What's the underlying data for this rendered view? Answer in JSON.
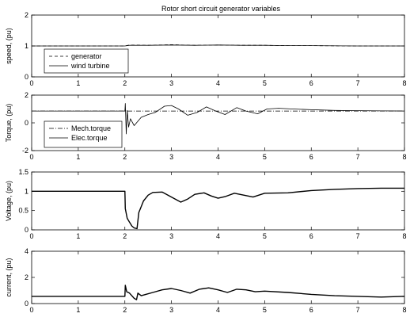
{
  "chart_data": [
    {
      "type": "line",
      "title": "Rotor short circuit generator variables",
      "xlabel": "",
      "ylabel": "speed, (pu)",
      "xlim": [
        0,
        8
      ],
      "ylim": [
        0,
        2
      ],
      "xticks": [
        0,
        1,
        2,
        3,
        4,
        5,
        6,
        7,
        8
      ],
      "yticks": [
        0,
        1,
        2
      ],
      "legend": "lower-left",
      "grid": false,
      "series": [
        {
          "name": "generator",
          "style": "dashed",
          "x": [
            0,
            2,
            2.1,
            2.5,
            3,
            3.5,
            4,
            4.5,
            5,
            5.5,
            6,
            7,
            8
          ],
          "y": [
            1.0,
            1.0,
            1.03,
            1.02,
            1.04,
            1.02,
            1.03,
            1.02,
            1.02,
            1.01,
            1.01,
            1.0,
            1.0
          ]
        },
        {
          "name": "wind turbine",
          "style": "solid",
          "x": [
            0,
            2,
            2.1,
            2.5,
            3,
            3.5,
            4,
            4.5,
            5,
            5.5,
            6,
            7,
            8
          ],
          "y": [
            1.0,
            1.0,
            1.02,
            1.02,
            1.03,
            1.02,
            1.03,
            1.02,
            1.02,
            1.01,
            1.01,
            1.0,
            1.0
          ]
        }
      ]
    },
    {
      "type": "line",
      "xlabel": "",
      "ylabel": "Torque, (pu)",
      "xlim": [
        0,
        8
      ],
      "ylim": [
        -2,
        2
      ],
      "xticks": [
        0,
        1,
        2,
        3,
        4,
        5,
        6,
        7,
        8
      ],
      "yticks": [
        -2,
        0,
        2
      ],
      "legend": "lower-left",
      "grid": false,
      "series": [
        {
          "name": "Mech.torque",
          "style": "dashdot",
          "x": [
            0,
            8
          ],
          "y": [
            0.85,
            0.85
          ]
        },
        {
          "name": "Elec.torque",
          "style": "solid",
          "x": [
            0,
            2.0,
            2.01,
            2.03,
            2.05,
            2.08,
            2.12,
            2.2,
            2.35,
            2.5,
            2.65,
            2.85,
            3.0,
            3.15,
            3.35,
            3.55,
            3.75,
            3.95,
            4.15,
            4.4,
            4.6,
            4.85,
            5.05,
            5.3,
            5.6,
            6.0,
            6.5,
            7.0,
            7.5,
            8.0
          ],
          "y": [
            0.85,
            0.85,
            1.4,
            -0.8,
            0.9,
            -0.3,
            0.3,
            -0.2,
            0.4,
            0.6,
            0.75,
            1.2,
            1.25,
            1.0,
            0.55,
            0.75,
            1.15,
            0.85,
            0.6,
            1.1,
            0.85,
            0.65,
            1.0,
            1.05,
            1.0,
            0.95,
            0.9,
            0.88,
            0.86,
            0.85
          ]
        }
      ]
    },
    {
      "type": "line",
      "xlabel": "",
      "ylabel": "Voltage, (pu)",
      "xlim": [
        0,
        8
      ],
      "ylim": [
        0,
        1.5
      ],
      "xticks": [
        0,
        1,
        2,
        3,
        4,
        5,
        6,
        7,
        8
      ],
      "yticks": [
        0,
        0.5,
        1,
        1.5
      ],
      "grid": false,
      "series": [
        {
          "style": "solid",
          "x": [
            0,
            2.0,
            2.01,
            2.05,
            2.1,
            2.15,
            2.2,
            2.26,
            2.3,
            2.4,
            2.5,
            2.6,
            2.8,
            3.0,
            3.2,
            3.35,
            3.5,
            3.7,
            3.85,
            4.0,
            4.15,
            4.35,
            4.55,
            4.75,
            5.0,
            5.5,
            6.0,
            6.5,
            7.0,
            7.5,
            8.0
          ],
          "y": [
            1.0,
            1.0,
            0.55,
            0.3,
            0.2,
            0.1,
            0.05,
            0.03,
            0.45,
            0.75,
            0.9,
            0.97,
            0.98,
            0.85,
            0.72,
            0.8,
            0.92,
            0.96,
            0.88,
            0.82,
            0.86,
            0.95,
            0.9,
            0.85,
            0.95,
            0.96,
            1.02,
            1.05,
            1.07,
            1.08,
            1.08
          ]
        }
      ]
    },
    {
      "type": "line",
      "xlabel": "",
      "ylabel": "current, (pu)",
      "xlim": [
        0,
        8
      ],
      "ylim": [
        0,
        4
      ],
      "xticks": [
        0,
        1,
        2,
        3,
        4,
        5,
        6,
        7,
        8
      ],
      "yticks": [
        0,
        2,
        4
      ],
      "grid": false,
      "series": [
        {
          "style": "solid",
          "x": [
            0,
            2.0,
            2.01,
            2.04,
            2.1,
            2.2,
            2.25,
            2.28,
            2.35,
            2.45,
            2.6,
            2.8,
            3.0,
            3.2,
            3.4,
            3.6,
            3.8,
            4.0,
            4.2,
            4.4,
            4.6,
            4.8,
            5.0,
            5.5,
            6.0,
            6.5,
            7.0,
            7.5,
            8.0
          ],
          "y": [
            0.55,
            0.55,
            1.4,
            0.9,
            0.8,
            0.4,
            0.3,
            0.8,
            0.6,
            0.7,
            0.85,
            1.05,
            1.15,
            1.0,
            0.8,
            1.1,
            1.2,
            1.05,
            0.85,
            1.1,
            1.05,
            0.9,
            0.95,
            0.85,
            0.7,
            0.6,
            0.55,
            0.5,
            0.55
          ]
        }
      ]
    }
  ]
}
